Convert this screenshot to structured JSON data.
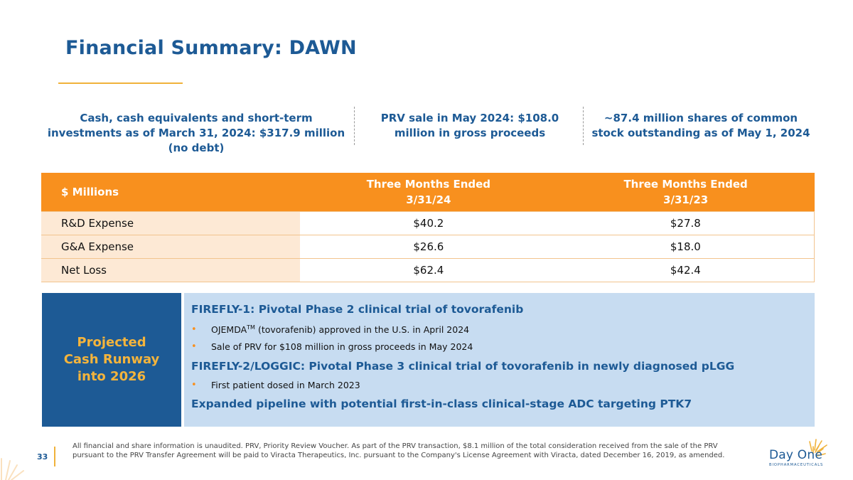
{
  "title": "Financial Summary: DAWN",
  "stats": [
    "Cash, cash equivalents and short-term investments as of March 31, 2024: $317.9 million (no debt)",
    "PRV sale in May 2024: $108.0 million in gross proceeds",
    "~87.4 million shares of common stock outstanding as of May 1, 2024"
  ],
  "table": {
    "label_header": "$ Millions",
    "col1_header": "Three Months Ended",
    "col1_date": "3/31/24",
    "col2_header": "Three Months Ended",
    "col2_date": "3/31/23",
    "rows": [
      {
        "label": "R&D Expense",
        "v1": "$40.2",
        "v2": "$27.8"
      },
      {
        "label": "G&A Expense",
        "v1": "$26.6",
        "v2": "$18.0"
      },
      {
        "label": "Net Loss",
        "v1": "$62.4",
        "v2": "$42.4"
      }
    ]
  },
  "runway": {
    "line1": "Projected",
    "line2": "Cash Runway",
    "line3": "into 2026"
  },
  "pipeline": {
    "heading1": "FIREFLY-1: Pivotal Phase 2 clinical trial of tovorafenib",
    "bullet1_brand": "OJEMDA",
    "bullet1_tm": "TM",
    "bullet1_rest": " (tovorafenib) approved in the U.S. in April 2024",
    "bullet2": "Sale of PRV for $108 million in gross proceeds in May 2024",
    "heading2": "FIREFLY-2/LOGGIC: Pivotal Phase 3 clinical trial of tovorafenib in newly diagnosed pLGG",
    "bullet3": "First patient dosed in March 2023",
    "heading3": "Expanded pipeline with potential first-in-class clinical-stage ADC targeting PTK7"
  },
  "footer": {
    "page_number": "33",
    "footnote": "All financial and share information is unaudited. PRV, Priority Review Voucher.  As part of the PRV transaction, $8.1 million of the total consideration received from the sale of the PRV pursuant to the PRV Transfer Agreement will be paid to Viracta Therapeutics, Inc. pursuant to the Company's License Agreement with Viracta, dated December 16, 2019, as amended."
  },
  "logo": {
    "name": "Day One",
    "subtitle": "BIOPHARMACEUTICALS"
  },
  "colors": {
    "brand_blue": "#1d5a95",
    "accent_orange": "#f8901e",
    "accent_gold": "#f0b23b",
    "light_blue": "#c7dcf1",
    "light_peach": "#fde9d5"
  }
}
